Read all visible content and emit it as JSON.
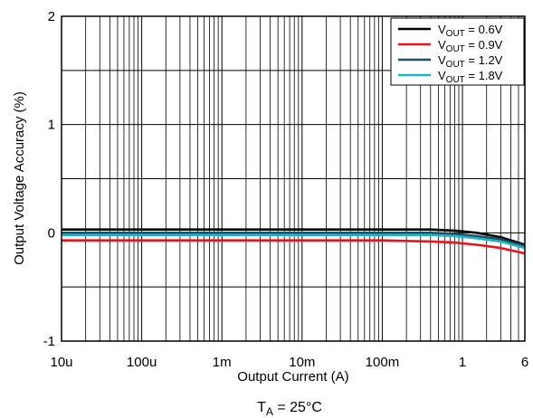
{
  "chart_data": {
    "type": "line",
    "xlabel": "Output Current (A)",
    "ylabel": "Output Voltage Accuracy (%)",
    "xscale": "log",
    "xlim": [
      1e-05,
      6
    ],
    "ylim": [
      -1,
      2
    ],
    "x_ticks": [
      {
        "value": 1e-05,
        "label": "10u"
      },
      {
        "value": 0.0001,
        "label": "100u"
      },
      {
        "value": 0.001,
        "label": "1m"
      },
      {
        "value": 0.01,
        "label": "10m"
      },
      {
        "value": 0.1,
        "label": "100m"
      },
      {
        "value": 1,
        "label": "1"
      },
      {
        "value": 6,
        "label": "6"
      }
    ],
    "y_ticks": [
      {
        "value": -1,
        "label": "-1"
      },
      {
        "value": 0,
        "label": "0"
      },
      {
        "value": 1,
        "label": "1"
      },
      {
        "value": 2,
        "label": "2"
      }
    ],
    "grid": true,
    "legend_position": "top-right",
    "series": [
      {
        "name": "V_OUT = 0.6V",
        "legend_main": "V",
        "legend_sub": "OUT",
        "legend_rest": " = 0.6V",
        "color": "#000000",
        "x": [
          1e-05,
          0.0001,
          0.001,
          0.01,
          0.1,
          0.4,
          0.8,
          1.5,
          3,
          6
        ],
        "y": [
          0.03,
          0.03,
          0.03,
          0.03,
          0.03,
          0.03,
          0.02,
          0.0,
          -0.04,
          -0.11
        ]
      },
      {
        "name": "V_OUT = 0.9V",
        "legend_main": "V",
        "legend_sub": "OUT",
        "legend_rest": " = 0.9V",
        "color": "#e8141c",
        "x": [
          1e-05,
          0.0001,
          0.001,
          0.01,
          0.1,
          0.4,
          0.8,
          1.5,
          3,
          6
        ],
        "y": [
          -0.07,
          -0.07,
          -0.07,
          -0.07,
          -0.07,
          -0.08,
          -0.09,
          -0.11,
          -0.14,
          -0.19
        ]
      },
      {
        "name": "V_OUT = 1.2V",
        "legend_main": "V",
        "legend_sub": "OUT",
        "legend_rest": " = 1.2V",
        "color": "#1c4f66",
        "x": [
          1e-05,
          0.0001,
          0.001,
          0.01,
          0.1,
          0.4,
          0.8,
          1.5,
          3,
          6
        ],
        "y": [
          0.0,
          0.0,
          0.0,
          0.0,
          0.0,
          0.0,
          -0.01,
          -0.03,
          -0.06,
          -0.12
        ]
      },
      {
        "name": "V_OUT = 1.8V",
        "legend_main": "V",
        "legend_sub": "OUT",
        "legend_rest": " = 1.8V",
        "color": "#1fb3c4",
        "x": [
          1e-05,
          0.0001,
          0.001,
          0.01,
          0.1,
          0.4,
          0.8,
          1.5,
          3,
          6
        ],
        "y": [
          -0.02,
          -0.02,
          -0.02,
          -0.02,
          -0.02,
          -0.02,
          -0.03,
          -0.05,
          -0.08,
          -0.14
        ]
      }
    ],
    "annotation": {
      "main": "T",
      "sub": "A",
      "rest": " = 25°C"
    }
  }
}
